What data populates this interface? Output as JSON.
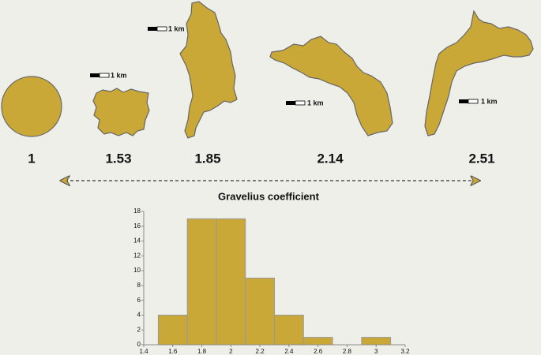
{
  "chart_data": {
    "type": "histogram",
    "title": "Gravelius coefficient",
    "bins": [
      1.5,
      1.7,
      1.9,
      2.1,
      2.3,
      2.5,
      2.7,
      2.9,
      3.1
    ],
    "values": [
      4,
      17,
      17,
      9,
      4,
      1,
      0,
      1
    ],
    "color": "#c9a838",
    "xlim": [
      1.4,
      3.2
    ],
    "xticks": [
      1.4,
      1.6,
      1.8,
      2,
      2.2,
      2.4,
      2.6,
      2.8,
      3,
      3.2
    ],
    "ylim": [
      0,
      18
    ],
    "yticks": [
      0,
      2,
      4,
      6,
      8,
      10,
      12,
      14,
      16,
      18
    ]
  },
  "shapes": {
    "values": [
      1,
      1.53,
      1.85,
      2.14,
      2.51
    ]
  },
  "scale_labels": [
    "1 km",
    "1 km",
    "1 km",
    "1 km"
  ]
}
